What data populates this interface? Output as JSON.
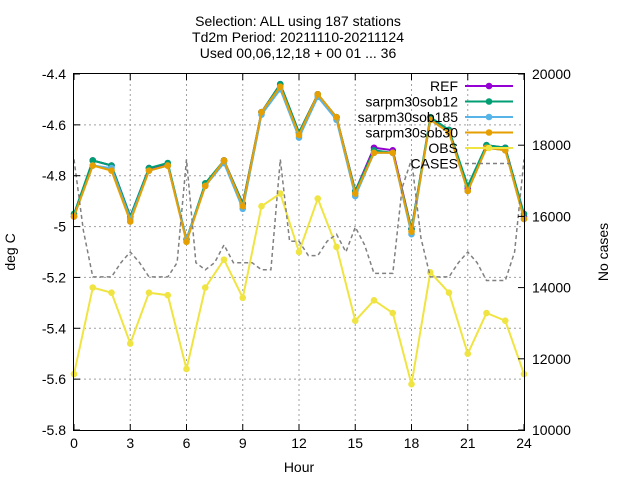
{
  "chart_data": {
    "type": "line",
    "title_lines": [
      "Selection: ALL using   187 stations",
      "Td2m   Period: 20211110-20211124",
      "Used 00,06,12,18 + 00 01 ... 36"
    ],
    "xlabel": "Hour",
    "ylabel": "deg C",
    "y2label": "No cases",
    "xlim": [
      0,
      24
    ],
    "ylim": [
      -5.8,
      -4.4
    ],
    "y2lim": [
      10000,
      20000
    ],
    "xticks": [
      0,
      3,
      6,
      9,
      12,
      15,
      18,
      21,
      24
    ],
    "xtick_labels": [
      "0",
      "3",
      "6",
      "9",
      "12",
      "15",
      "18",
      "21",
      "24"
    ],
    "yticks": [
      -5.8,
      -5.6,
      -5.4,
      -5.2,
      -5.0,
      -4.8,
      -4.6,
      -4.4
    ],
    "ytick_labels": [
      "-5.8",
      "-5.6",
      "-5.4",
      "-5.2",
      "-5",
      "-4.8",
      "-4.6",
      "-4.4"
    ],
    "y2ticks": [
      10000,
      12000,
      14000,
      16000,
      18000,
      20000
    ],
    "y2tick_labels": [
      "10000",
      "12000",
      "14000",
      "16000",
      "18000",
      "20000"
    ],
    "grid": true,
    "legend_position": "top-right",
    "x": [
      0,
      1,
      2,
      3,
      4,
      5,
      6,
      7,
      8,
      9,
      10,
      11,
      12,
      13,
      14,
      15,
      16,
      17,
      18,
      19,
      20,
      21,
      22,
      23,
      24
    ],
    "series": [
      {
        "name": "REF",
        "color": "#9400d3",
        "marker": "circle",
        "axis": "y",
        "values": [
          -4.96,
          -4.74,
          -4.76,
          -4.96,
          -4.77,
          -4.76,
          -5.05,
          -4.84,
          -4.74,
          -4.91,
          -4.55,
          -4.44,
          -4.63,
          -4.48,
          -4.57,
          -4.86,
          -4.69,
          -4.7,
          -5.01,
          -4.58,
          -4.62,
          -4.85,
          -4.68,
          -4.69,
          -4.96
        ]
      },
      {
        "name": "sar_pm30_sob12",
        "color": "#009e73",
        "marker": "circle",
        "axis": "y",
        "values": [
          -4.95,
          -4.74,
          -4.76,
          -4.96,
          -4.77,
          -4.75,
          -5.05,
          -4.83,
          -4.74,
          -4.91,
          -4.55,
          -4.44,
          -4.63,
          -4.48,
          -4.57,
          -4.86,
          -4.7,
          -4.71,
          -5.01,
          -4.57,
          -4.62,
          -4.84,
          -4.68,
          -4.69,
          -4.95
        ]
      },
      {
        "name": "sar_pm30_sob185",
        "color": "#56b4e9",
        "marker": "circle",
        "axis": "y",
        "values": [
          -4.96,
          -4.76,
          -4.77,
          -4.97,
          -4.78,
          -4.76,
          -5.05,
          -4.84,
          -4.75,
          -4.93,
          -4.56,
          -4.46,
          -4.65,
          -4.49,
          -4.58,
          -4.88,
          -4.71,
          -4.71,
          -5.03,
          -4.58,
          -4.63,
          -4.86,
          -4.69,
          -4.7,
          -4.97
        ]
      },
      {
        "name": "sar_pm30_sob30",
        "color": "#e69f00",
        "marker": "circle",
        "axis": "y",
        "values": [
          -4.96,
          -4.76,
          -4.78,
          -4.98,
          -4.78,
          -4.76,
          -5.06,
          -4.84,
          -4.74,
          -4.92,
          -4.55,
          -4.45,
          -4.64,
          -4.48,
          -4.57,
          -4.87,
          -4.71,
          -4.71,
          -5.02,
          -4.58,
          -4.63,
          -4.86,
          -4.69,
          -4.7,
          -4.97
        ]
      },
      {
        "name": "OBS",
        "color": "#f0e442",
        "marker": "circle",
        "axis": "y",
        "values": [
          -5.58,
          -5.24,
          -5.26,
          -5.46,
          -5.26,
          -5.27,
          -5.56,
          -5.24,
          -5.13,
          -5.28,
          -4.92,
          -4.87,
          -5.1,
          -4.89,
          -5.08,
          -5.37,
          -5.29,
          -5.34,
          -5.62,
          -5.18,
          -5.26,
          -5.5,
          -5.34,
          -5.37,
          -5.58
        ]
      },
      {
        "name": "CASES",
        "color": "#808080",
        "marker": "none",
        "dash": true,
        "axis": "y2",
        "x": [
          0,
          0.5,
          1,
          1.5,
          2,
          2.5,
          3,
          3.5,
          4,
          4.5,
          5,
          5.5,
          6,
          6.5,
          7,
          7.5,
          8,
          8.5,
          9,
          9.5,
          10,
          10.5,
          11,
          11.5,
          12,
          12.5,
          13,
          13.5,
          14,
          14.5,
          15,
          15.5,
          16,
          16.5,
          17,
          17.5,
          18,
          18.5,
          19,
          19.5,
          20,
          20.5,
          21,
          21.5,
          22,
          22.5,
          23,
          23.5,
          24
        ],
        "values": [
          17600,
          15600,
          14300,
          14300,
          14300,
          14700,
          15000,
          14700,
          14300,
          14300,
          14300,
          14700,
          17600,
          14700,
          14500,
          14700,
          15200,
          14700,
          14700,
          14700,
          14500,
          14500,
          17600,
          15300,
          15300,
          14900,
          14900,
          15300,
          15500,
          15000,
          15700,
          15200,
          14400,
          14400,
          14400,
          16800,
          17600,
          15400,
          14300,
          14300,
          14300,
          14700,
          15000,
          14700,
          14200,
          14200,
          14200,
          15000,
          17600
        ]
      }
    ]
  }
}
